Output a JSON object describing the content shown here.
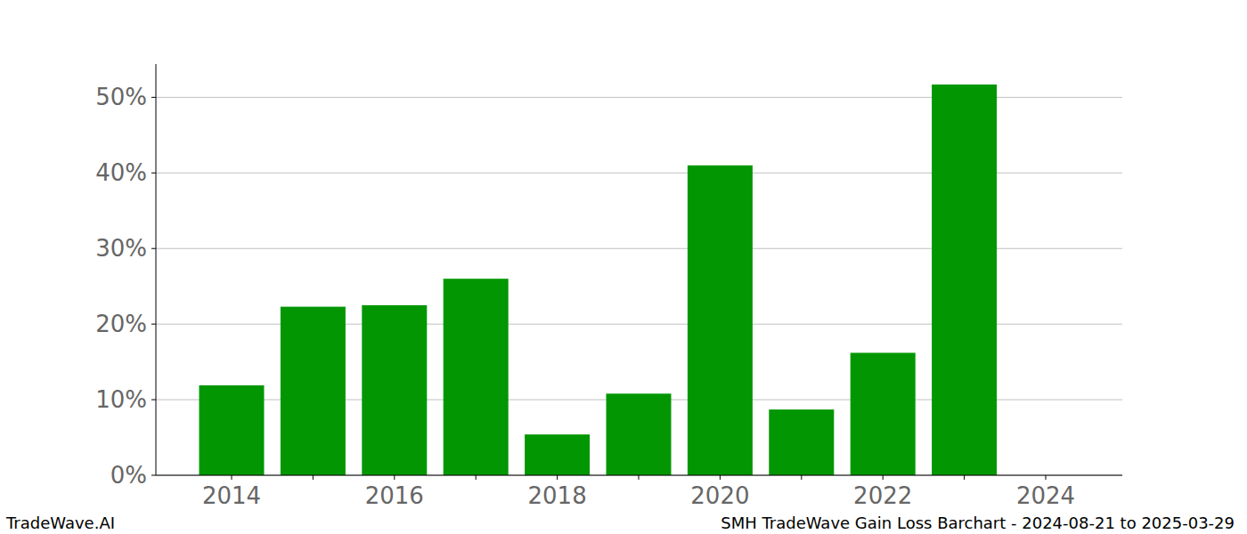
{
  "chart_data": {
    "type": "bar",
    "title": "SMH TradeWave Gain Loss Barchart - 2024-08-21 to 2025-03-29",
    "annotations": [
      "TradeWave.AI"
    ],
    "categories": [
      "2014",
      null,
      "2016",
      null,
      "2018",
      null,
      "2020",
      null,
      "2022",
      null,
      "2024"
    ],
    "values": [
      11.9,
      22.3,
      22.5,
      26.0,
      5.4,
      10.8,
      41.0,
      8.7,
      16.2,
      51.7,
      null
    ],
    "color": "#029702",
    "ylim": [
      0,
      54.4
    ],
    "yticks": [
      {
        "value": 0,
        "label": "0%"
      },
      {
        "value": 10,
        "label": "10%"
      },
      {
        "value": 20,
        "label": "20%"
      },
      {
        "value": 30,
        "label": "30%"
      },
      {
        "value": 40,
        "label": "40%"
      },
      {
        "value": 50,
        "label": "50%"
      }
    ],
    "grid": true
  }
}
